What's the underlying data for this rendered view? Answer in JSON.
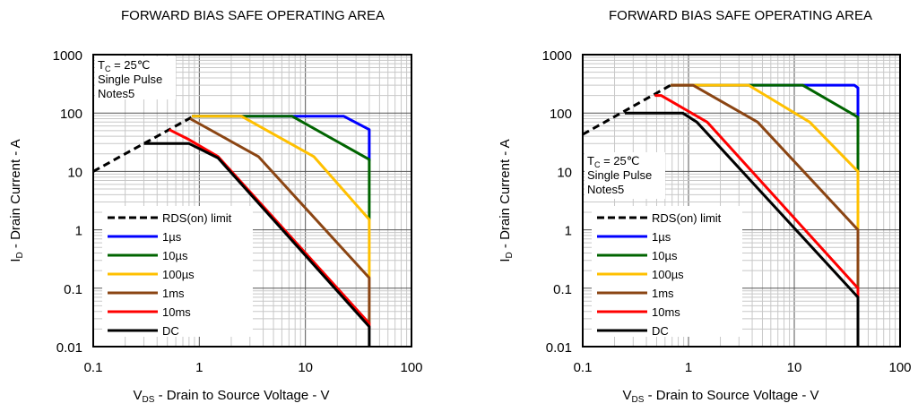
{
  "chart_data": [
    {
      "type": "line",
      "title": "FORWARD BIAS SAFE OPERATING AREA",
      "xlabel_main": "V",
      "xlabel_sub": "DS",
      "xlabel_rest": " - Drain to Source Voltage - V",
      "ylabel_main": "I",
      "ylabel_sub": "D",
      "ylabel_rest": " - Drain Current - A",
      "xscale": "log",
      "yscale": "log",
      "xlim": [
        0.1,
        100
      ],
      "ylim": [
        0.01,
        1000
      ],
      "xticks": [
        "0.1",
        "1",
        "10",
        "100"
      ],
      "yticks": [
        "0.01",
        "0.1",
        "1",
        "10",
        "100",
        "1000"
      ],
      "grid": true,
      "note": {
        "line1_main": "T",
        "line1_sub": "C",
        "line1_rest": " = 25℃",
        "line2": "Single Pulse",
        "line3": "Notes5",
        "placement": "top-left"
      },
      "legend_placement": "bottom-left",
      "series": [
        {
          "name": "RDS(on) limit",
          "color": "#000000",
          "dashed": true,
          "x": [
            0.1,
            0.85
          ],
          "y": [
            10,
            85
          ]
        },
        {
          "name": "1µs",
          "color": "#0000ff",
          "dashed": false,
          "x": [
            0.85,
            23,
            40,
            40
          ],
          "y": [
            88,
            88,
            52,
            15
          ]
        },
        {
          "name": "10µs",
          "color": "#006400",
          "dashed": false,
          "x": [
            0.85,
            7.5,
            40,
            40
          ],
          "y": [
            88,
            88,
            16,
            1.5
          ]
        },
        {
          "name": "100µs",
          "color": "#ffc000",
          "dashed": false,
          "x": [
            0.85,
            2.5,
            12,
            40,
            40
          ],
          "y": [
            88,
            88,
            18,
            1.5,
            0.15
          ]
        },
        {
          "name": "1ms",
          "color": "#8b4513",
          "dashed": false,
          "x": [
            0.82,
            3.6,
            40,
            40
          ],
          "y": [
            80,
            18,
            0.15,
            0.025
          ]
        },
        {
          "name": "10ms",
          "color": "#ff0000",
          "dashed": false,
          "x": [
            0.52,
            0.8,
            1.5,
            40,
            40
          ],
          "y": [
            52,
            35,
            18,
            0.025,
            0.02
          ]
        },
        {
          "name": "DC",
          "color": "#000000",
          "dashed": false,
          "x": [
            0.3,
            0.8,
            1.5,
            40,
            40
          ],
          "y": [
            30,
            30,
            17,
            0.022,
            0.01
          ]
        }
      ]
    },
    {
      "type": "line",
      "title": "FORWARD BIAS SAFE OPERATING AREA",
      "xlabel_main": "V",
      "xlabel_sub": "DS",
      "xlabel_rest": " - Drain to Source Voltage - V",
      "ylabel_main": "I",
      "ylabel_sub": "D",
      "ylabel_rest": " - Drain Current - A",
      "xscale": "log",
      "yscale": "log",
      "xlim": [
        0.1,
        100
      ],
      "ylim": [
        0.01,
        1000
      ],
      "xticks": [
        "0.1",
        "1",
        "10",
        "100"
      ],
      "yticks": [
        "0.01",
        "0.1",
        "1",
        "10",
        "100",
        "1000"
      ],
      "grid": true,
      "note": {
        "line1_main": "T",
        "line1_sub": "C",
        "line1_rest": " = 25℃",
        "line2": "Single Pulse",
        "line3": "Notes5",
        "placement": "middle-left"
      },
      "legend_placement": "bottom-left",
      "series": [
        {
          "name": "RDS(on) limit",
          "color": "#000000",
          "dashed": true,
          "x": [
            0.1,
            0.68
          ],
          "y": [
            43,
            300
          ]
        },
        {
          "name": "1µs",
          "color": "#0000ff",
          "dashed": false,
          "x": [
            0.68,
            37,
            40,
            40
          ],
          "y": [
            300,
            300,
            270,
            85
          ]
        },
        {
          "name": "10µs",
          "color": "#006400",
          "dashed": false,
          "x": [
            0.68,
            12,
            40,
            40
          ],
          "y": [
            300,
            300,
            85,
            10
          ]
        },
        {
          "name": "100µs",
          "color": "#ffc000",
          "dashed": false,
          "x": [
            0.68,
            3.7,
            14,
            40,
            40
          ],
          "y": [
            300,
            300,
            70,
            10,
            1
          ]
        },
        {
          "name": "1ms",
          "color": "#8b4513",
          "dashed": false,
          "x": [
            0.68,
            1.1,
            4.5,
            40,
            40
          ],
          "y": [
            300,
            300,
            70,
            1,
            0.1
          ]
        },
        {
          "name": "10ms",
          "color": "#ff0000",
          "dashed": false,
          "x": [
            0.48,
            0.55,
            1.5,
            40,
            40
          ],
          "y": [
            200,
            200,
            70,
            0.1,
            0.07
          ]
        },
        {
          "name": "DC",
          "color": "#000000",
          "dashed": false,
          "x": [
            0.25,
            0.88,
            1.2,
            40,
            40
          ],
          "y": [
            100,
            100,
            70,
            0.07,
            0.01
          ]
        }
      ]
    }
  ]
}
